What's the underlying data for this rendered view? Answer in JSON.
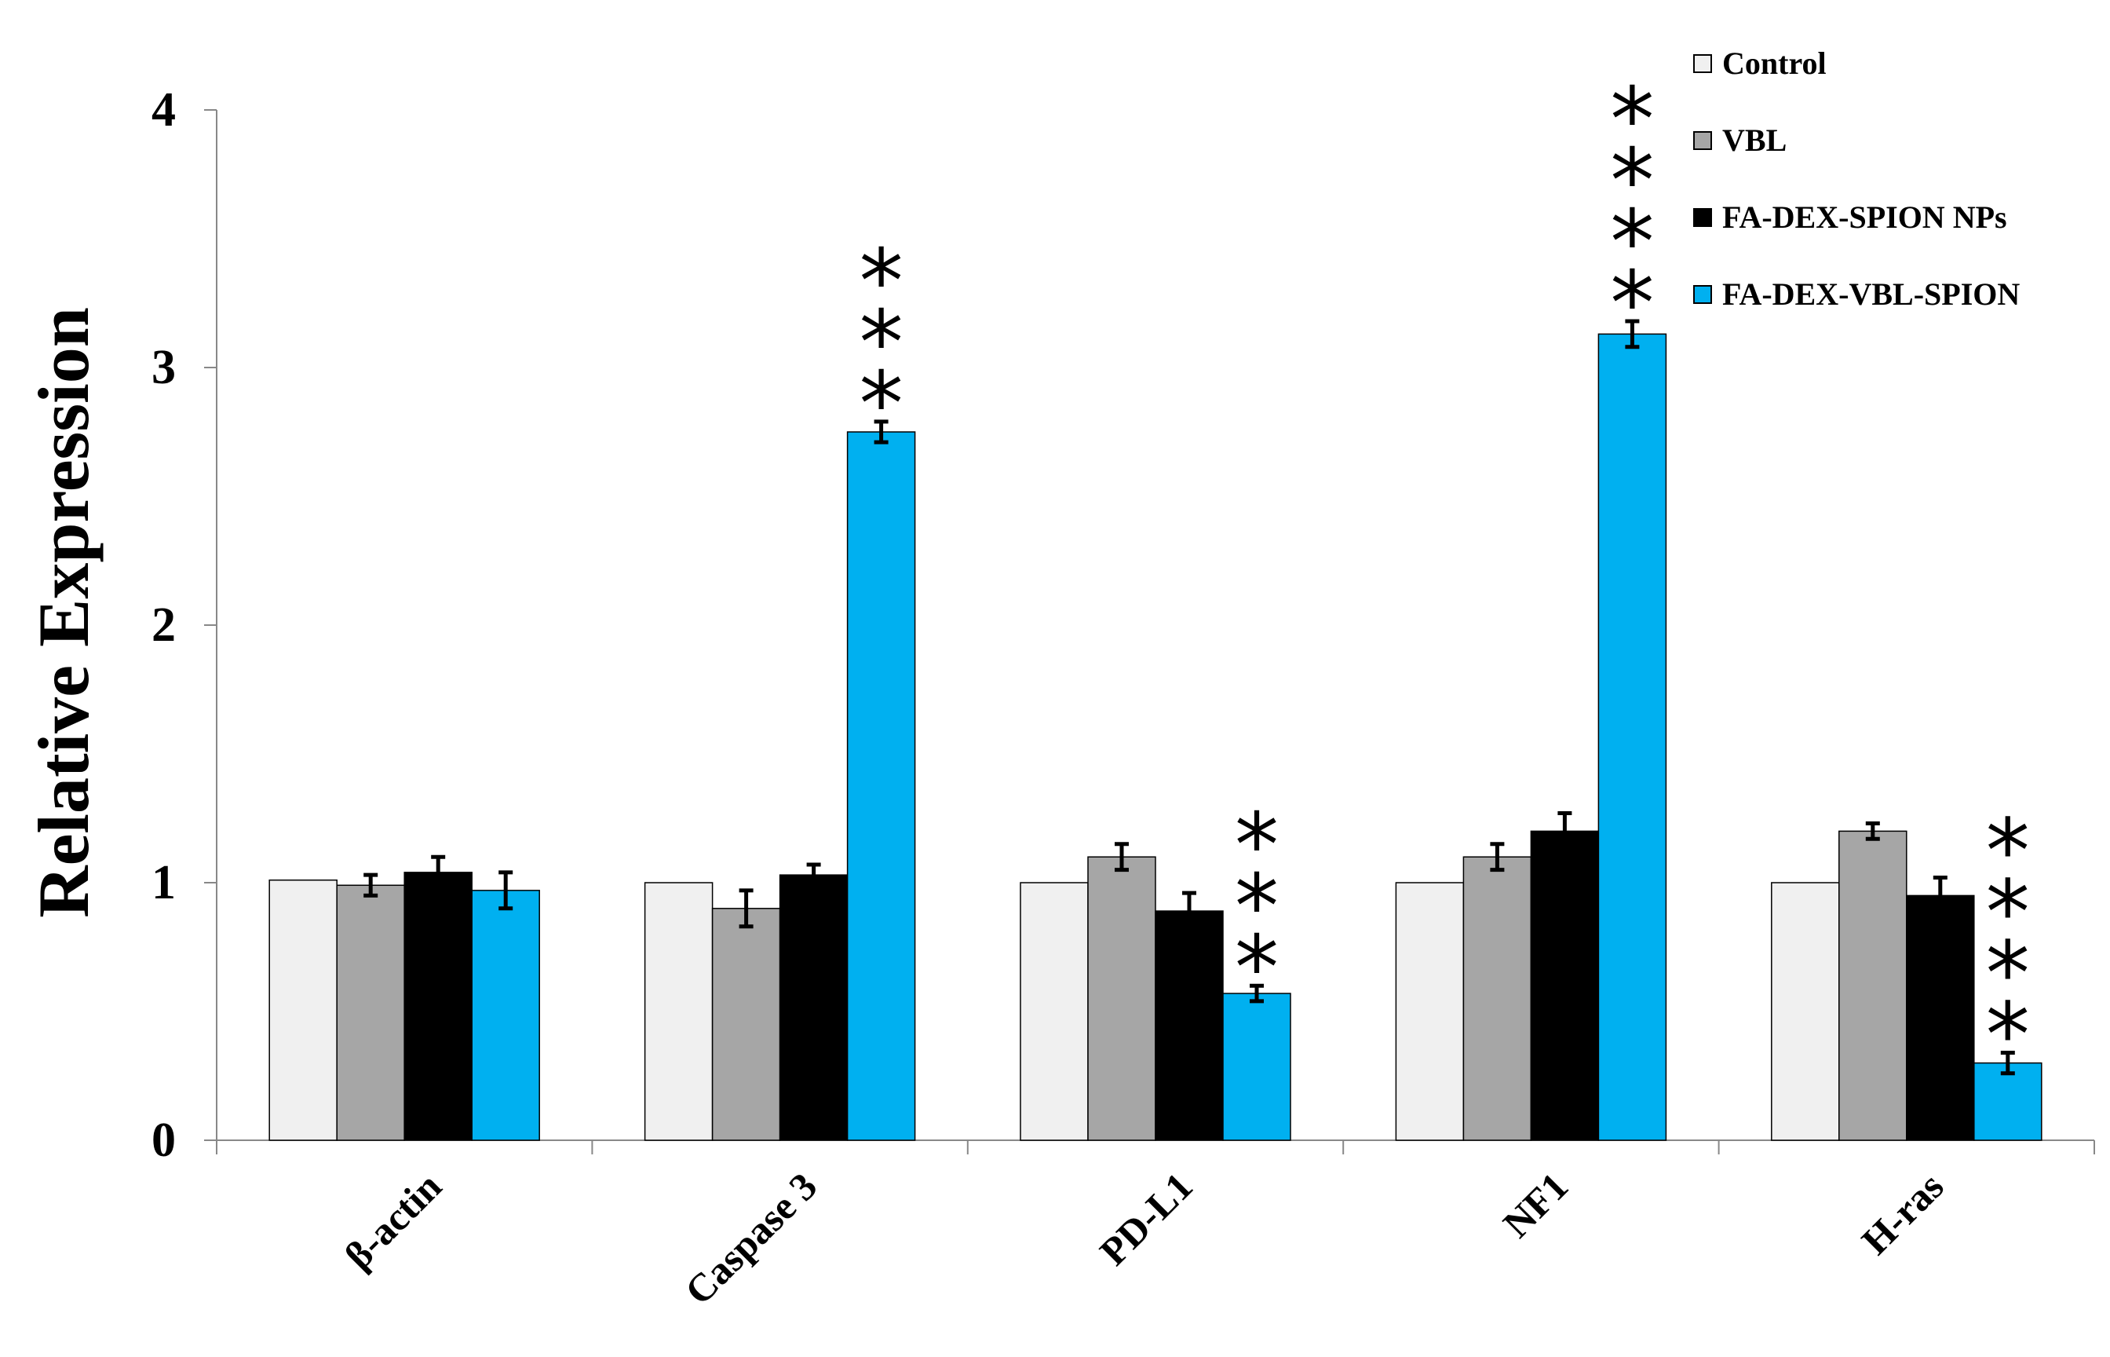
{
  "chart_data": {
    "type": "bar",
    "ylabel": "Relative Expression",
    "xlabel": "",
    "ylim": [
      0,
      4
    ],
    "yticks": [
      0,
      1,
      2,
      3,
      4
    ],
    "categories": [
      "β-actin",
      "Caspase 3",
      "PD-L1",
      "NF1",
      "H-ras"
    ],
    "series": [
      {
        "name": "Control",
        "color": "#f0f0f0",
        "values": [
          1.01,
          1.0,
          1.0,
          1.0,
          1.0
        ],
        "errors": [
          0,
          0,
          0,
          0,
          0
        ]
      },
      {
        "name": "VBL",
        "color": "#a6a6a6",
        "values": [
          0.99,
          0.9,
          1.1,
          1.1,
          1.2
        ],
        "errors": [
          0.04,
          0.07,
          0.05,
          0.05,
          0.03
        ]
      },
      {
        "name": "FA-DEX-SPION NPs",
        "color": "#000000",
        "values": [
          1.04,
          1.03,
          0.89,
          1.2,
          0.95
        ],
        "errors": [
          0.06,
          0.04,
          0.07,
          0.07,
          0.07
        ]
      },
      {
        "name": "FA-DEX-VBL-SPION",
        "color": "#00b0f0",
        "values": [
          0.97,
          2.75,
          0.57,
          3.13,
          0.3
        ],
        "errors": [
          0.07,
          0.04,
          0.03,
          0.05,
          0.04
        ]
      }
    ],
    "annotations": [
      {
        "category_index": 1,
        "series_index": 3,
        "text": "***"
      },
      {
        "category_index": 2,
        "series_index": 3,
        "text": "***"
      },
      {
        "category_index": 3,
        "series_index": 3,
        "text": "****"
      },
      {
        "category_index": 4,
        "series_index": 3,
        "text": "****"
      }
    ],
    "legend_position": "top-right",
    "grid": false
  }
}
